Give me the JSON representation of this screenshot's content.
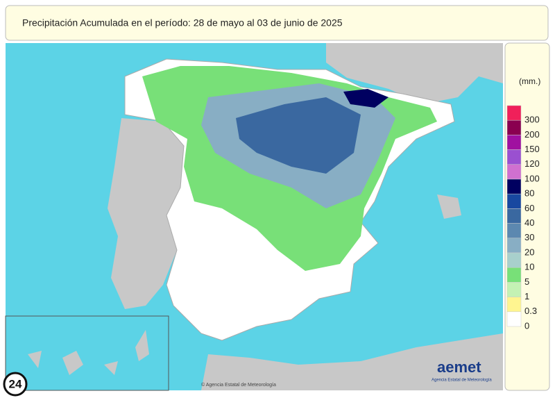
{
  "header": {
    "title": "Precipitación Acumulada en el período: 28  de mayo  al 03  de junio de  2025"
  },
  "legend": {
    "unit": "(mm.)",
    "items": [
      {
        "label": 300,
        "color": "#f0205a"
      },
      {
        "label": 200,
        "color": "#8a0050"
      },
      {
        "label": 150,
        "color": "#a010a0"
      },
      {
        "label": 120,
        "color": "#9a50d0"
      },
      {
        "label": 100,
        "color": "#d070d0"
      },
      {
        "label": 80,
        "color": "#000060"
      },
      {
        "label": 60,
        "color": "#1848a0"
      },
      {
        "label": 40,
        "color": "#3a68a0"
      },
      {
        "label": 30,
        "color": "#5c88b0"
      },
      {
        "label": 20,
        "color": "#88aec4"
      },
      {
        "label": 10,
        "color": "#a8d0cc"
      },
      {
        "label": 5,
        "color": "#78e078"
      },
      {
        "label": 1,
        "color": "#c4f2b4"
      },
      {
        "label": 0.3,
        "color": "#fff590"
      },
      {
        "label": 0,
        "color": "#ffffff"
      }
    ]
  },
  "logo": {
    "name": "aemet",
    "subtitle": "Agencia Estatal de Meteorología"
  },
  "copyright": "© Agencia Estatal de Meteorología",
  "badge": "24"
}
